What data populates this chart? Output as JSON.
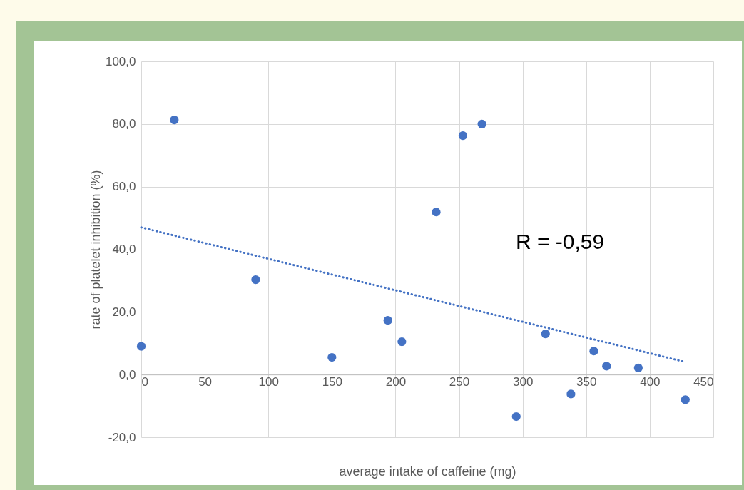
{
  "chart_data": {
    "type": "scatter",
    "xlabel": "average intake of caffeine (mg)",
    "ylabel": "rate of platelet inhibition (%)",
    "xlim": [
      0,
      450
    ],
    "xticks": [
      0,
      50,
      100,
      150,
      200,
      250,
      300,
      350,
      400,
      450
    ],
    "ylim": [
      -20,
      100
    ],
    "yticks": [
      {
        "value": -20,
        "label": "-20,0"
      },
      {
        "value": 0,
        "label": "0,0"
      },
      {
        "value": 20,
        "label": "20,0"
      },
      {
        "value": 40,
        "label": "40,0"
      },
      {
        "value": 60,
        "label": "60,0"
      },
      {
        "value": 80,
        "label": "80,0"
      },
      {
        "value": 100,
        "label": "100,0"
      }
    ],
    "grid": true,
    "annotations": [
      "R = -0,59"
    ],
    "series": [
      {
        "marker": "circle",
        "color": "#4472c4",
        "x": [
          0,
          26,
          90,
          150,
          194,
          205,
          232,
          253,
          268,
          295,
          318,
          338,
          356,
          366,
          391,
          428
        ],
        "values": [
          9,
          81.3,
          30.3,
          5.5,
          17.3,
          10.5,
          51.9,
          76.3,
          80,
          -13.4,
          13,
          -6.2,
          7.5,
          2.7,
          2.1,
          -8
        ]
      },
      {
        "type": "line",
        "color": "#4472c4",
        "line_style": "dotted",
        "x": [
          0,
          428
        ],
        "values": [
          47,
          4
        ]
      }
    ]
  }
}
